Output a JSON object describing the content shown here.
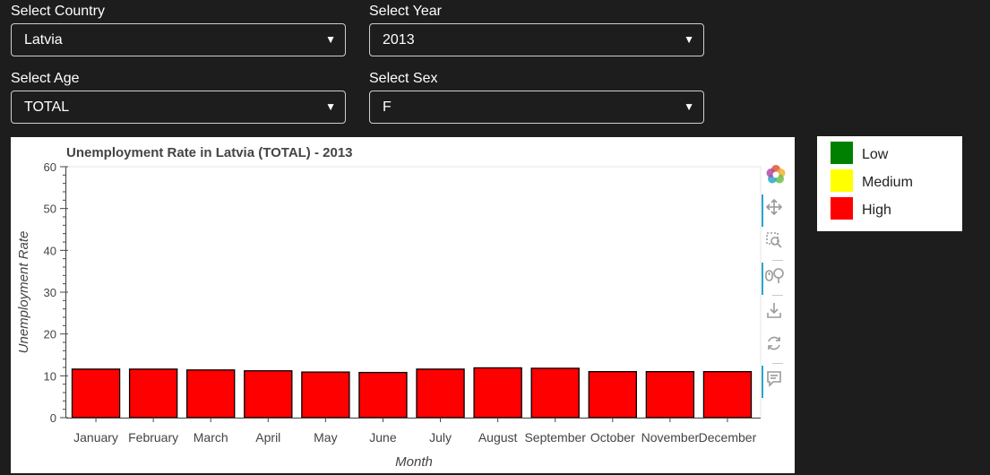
{
  "filters": {
    "country": {
      "label": "Select Country",
      "value": "Latvia"
    },
    "year": {
      "label": "Select Year",
      "value": "2013"
    },
    "age": {
      "label": "Select Age",
      "value": "TOTAL"
    },
    "sex": {
      "label": "Select Sex",
      "value": "F"
    }
  },
  "colors": {
    "background": "#1d1d1d",
    "bar_high": "#ff0000",
    "legend_low": "#008000",
    "legend_medium": "#ffff00",
    "legend_high": "#ff0000",
    "toolbar_active": "#29a5d5"
  },
  "toolbar": {
    "tools": [
      "bokeh-logo-icon",
      "pan-icon",
      "box-zoom-icon",
      "wheel-zoom-icon",
      "save-icon",
      "reset-icon",
      "hover-icon"
    ]
  },
  "legend": {
    "items": [
      {
        "label": "Low",
        "color": "#008000"
      },
      {
        "label": "Medium",
        "color": "#ffff00"
      },
      {
        "label": "High",
        "color": "#ff0000"
      }
    ]
  },
  "chart_data": {
    "type": "bar",
    "title": "Unemployment Rate in Latvia (TOTAL) - 2013",
    "xlabel": "Month",
    "ylabel": "Unemployment Rate",
    "categories": [
      "January",
      "February",
      "March",
      "April",
      "May",
      "June",
      "July",
      "August",
      "September",
      "October",
      "November",
      "December"
    ],
    "values": [
      11.6,
      11.6,
      11.4,
      11.2,
      10.9,
      10.8,
      11.6,
      11.9,
      11.8,
      11.0,
      11.0,
      11.0
    ],
    "ylim": [
      0,
      60
    ],
    "yticks": [
      0,
      10,
      20,
      30,
      40,
      50,
      60
    ],
    "bar_color": "#ff0000",
    "grid": false,
    "legend_position": "right"
  }
}
